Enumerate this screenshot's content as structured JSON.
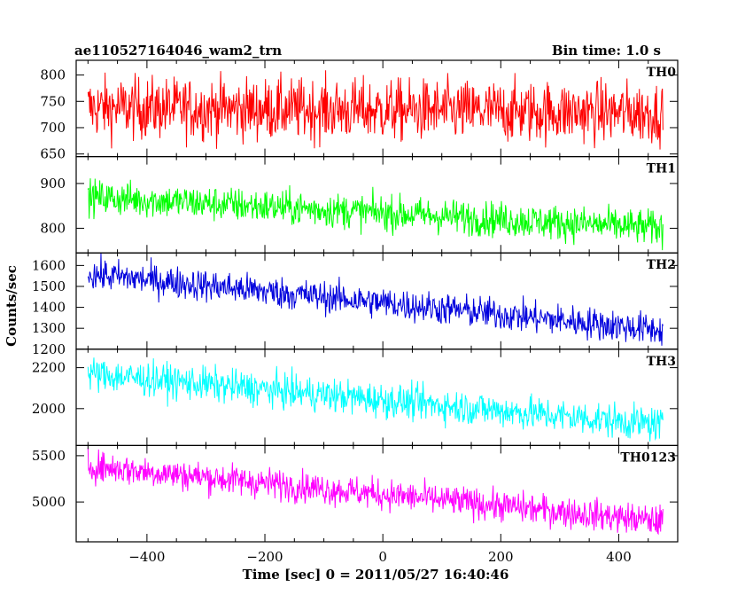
{
  "chart_data": {
    "type": "line",
    "title": "ae110527164046_wam2_trn",
    "subtitle": "Bin time: 1.0 s",
    "xlabel": "Time [sec] 0 = 2011/05/27 16:40:46",
    "ylabel": "Counts/sec",
    "xlim": [
      -520,
      500
    ],
    "x_range": [
      -500,
      475
    ],
    "xticks": [
      -400,
      -200,
      0,
      200,
      400
    ],
    "xtick_labels": [
      "−400",
      "−200",
      "0",
      "200",
      "400"
    ],
    "panels": [
      {
        "name": "TH0",
        "color": "#ff0000",
        "ylim": [
          645,
          828
        ],
        "yticks": [
          650,
          700,
          750,
          800
        ],
        "trend": [
          [
            -500,
            738
          ],
          [
            475,
            728
          ]
        ],
        "noise": 42
      },
      {
        "name": "TH1",
        "color": "#00ff00",
        "ylim": [
          745,
          960
        ],
        "yticks": [
          800,
          900
        ],
        "trend": [
          [
            -500,
            870
          ],
          [
            475,
            800
          ]
        ],
        "noise": 28
      },
      {
        "name": "TH2",
        "color": "#0000dd",
        "ylim": [
          1200,
          1660
        ],
        "yticks": [
          1200,
          1300,
          1400,
          1500,
          1600
        ],
        "trend": [
          [
            -500,
            1560
          ],
          [
            475,
            1290
          ]
        ],
        "noise": 55
      },
      {
        "name": "TH3",
        "color": "#00ffff",
        "ylim": [
          1820,
          2290
        ],
        "yticks": [
          2000,
          2200
        ],
        "trend": [
          [
            -500,
            2170
          ],
          [
            475,
            1920
          ]
        ],
        "noise": 60
      },
      {
        "name": "TH0123",
        "color": "#ff00ff",
        "ylim": [
          4570,
          5610
        ],
        "yticks": [
          5000,
          5500
        ],
        "trend": [
          [
            -500,
            5390
          ],
          [
            475,
            4790
          ]
        ],
        "noise": 120
      }
    ]
  }
}
